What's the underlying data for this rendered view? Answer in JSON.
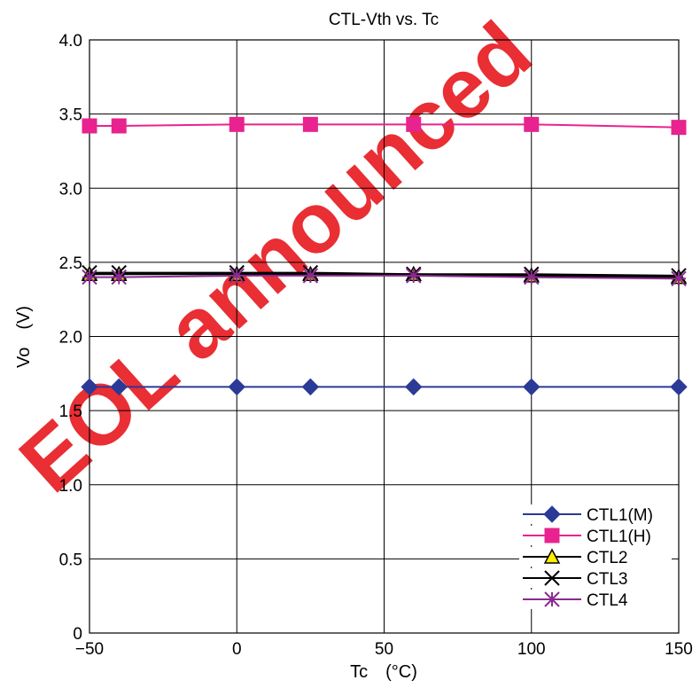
{
  "chart_data": {
    "type": "line",
    "title": "CTL-Vth vs. Tc",
    "xlabel": "Tc　(°C)",
    "ylabel": "Vo　(V)",
    "xlim": [
      -50,
      150
    ],
    "ylim": [
      0,
      4.0
    ],
    "x_ticks": [
      -50,
      0,
      50,
      100,
      150
    ],
    "x_tick_labels": [
      "−50",
      "0",
      "50",
      "100",
      "150"
    ],
    "y_ticks": [
      0,
      0.5,
      1.0,
      1.5,
      2.0,
      2.5,
      3.0,
      3.5,
      4.0
    ],
    "y_tick_labels": [
      "0",
      "0.5",
      "1.0",
      "1.5",
      "2.0",
      "2.5",
      "3.0",
      "3.5",
      "4.0"
    ],
    "grid": true,
    "legend_position": "bottom-right",
    "x": [
      -50,
      -40,
      0,
      25,
      60,
      100,
      150
    ],
    "series": [
      {
        "name": "CTL1(M)",
        "color": "#2b3a96",
        "marker": "diamond",
        "values": [
          1.66,
          1.66,
          1.66,
          1.66,
          1.66,
          1.66,
          1.66
        ]
      },
      {
        "name": "CTL1(H)",
        "color": "#e8238f",
        "marker": "square",
        "values": [
          3.42,
          3.42,
          3.43,
          3.43,
          3.43,
          3.43,
          3.41
        ]
      },
      {
        "name": "CTL2",
        "color": "#000000",
        "marker": "triangle",
        "marker_fill": "#ffee00",
        "values": [
          2.42,
          2.42,
          2.42,
          2.42,
          2.42,
          2.41,
          2.4
        ]
      },
      {
        "name": "CTL3",
        "color": "#000000",
        "marker": "x",
        "values": [
          2.43,
          2.43,
          2.43,
          2.43,
          2.42,
          2.42,
          2.41
        ]
      },
      {
        "name": "CTL4",
        "color": "#8a2b8f",
        "marker": "asterisk",
        "values": [
          2.4,
          2.4,
          2.41,
          2.41,
          2.41,
          2.4,
          2.39
        ]
      }
    ]
  },
  "watermark": {
    "text": "EOL announced",
    "color": "#e8232a"
  }
}
